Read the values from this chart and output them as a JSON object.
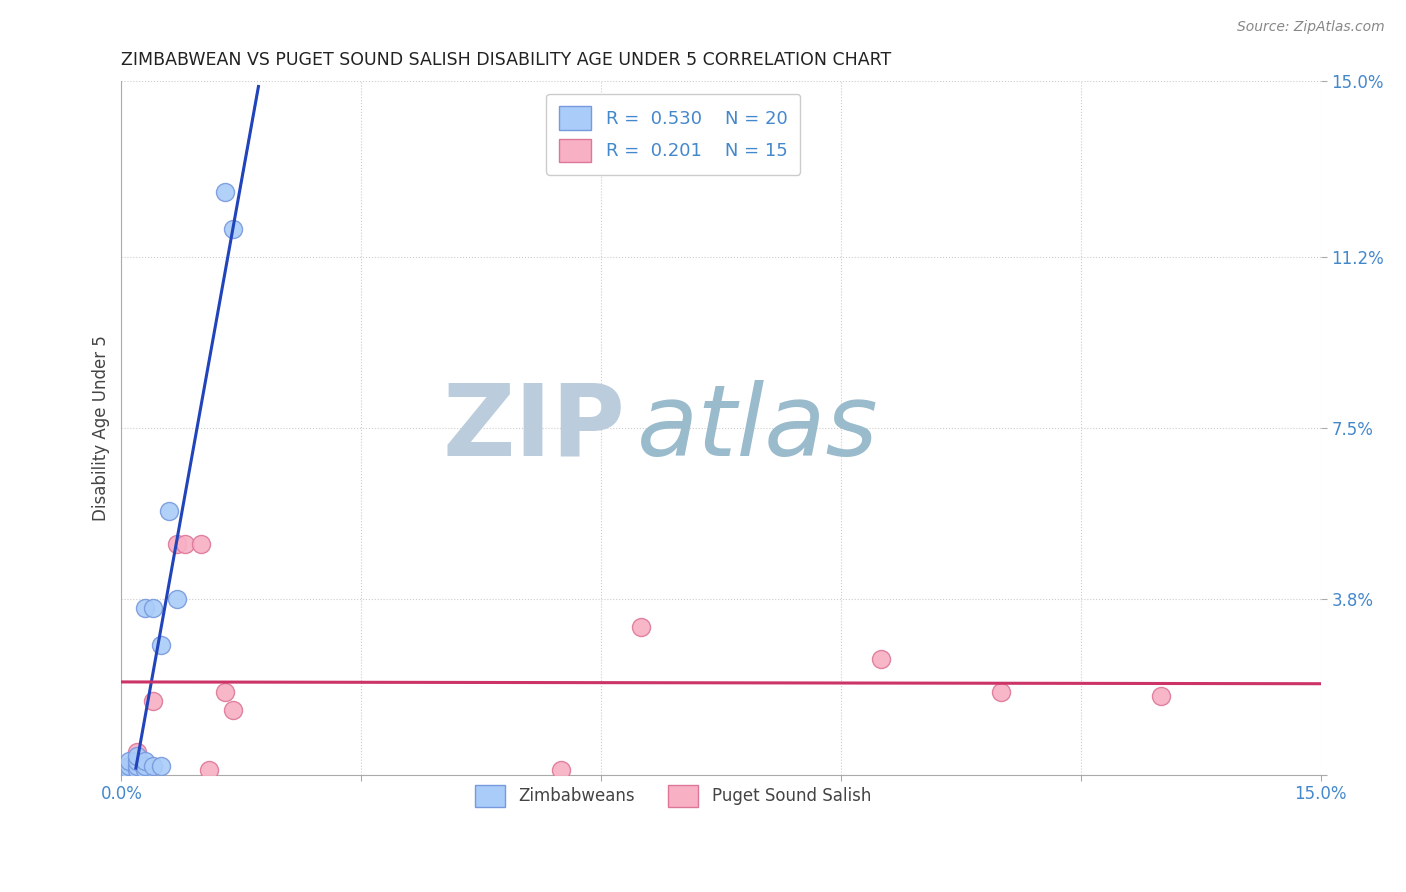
{
  "title": "ZIMBABWEAN VS PUGET SOUND SALISH DISABILITY AGE UNDER 5 CORRELATION CHART",
  "source": "Source: ZipAtlas.com",
  "ylabel": "Disability Age Under 5",
  "xlim": [
    0.0,
    0.15
  ],
  "ylim": [
    0.0,
    0.15
  ],
  "xtick_vals": [
    0.0,
    0.03,
    0.06,
    0.09,
    0.12,
    0.15
  ],
  "ytick_vals": [
    0.0,
    0.038,
    0.075,
    0.112,
    0.15
  ],
  "legend_blue_R": "0.530",
  "legend_blue_N": "20",
  "legend_pink_R": "0.201",
  "legend_pink_N": "15",
  "legend_bottom": [
    "Zimbabweans",
    "Puget Sound Salish"
  ],
  "watermark_zip": "ZIP",
  "watermark_atlas": "atlas",
  "blue_scatter_x": [
    0.0005,
    0.001,
    0.001,
    0.001,
    0.002,
    0.002,
    0.002,
    0.002,
    0.003,
    0.003,
    0.003,
    0.003,
    0.004,
    0.004,
    0.005,
    0.005,
    0.006,
    0.007,
    0.013,
    0.014
  ],
  "blue_scatter_y": [
    0.001,
    0.001,
    0.002,
    0.003,
    0.001,
    0.002,
    0.003,
    0.004,
    0.001,
    0.002,
    0.003,
    0.036,
    0.002,
    0.036,
    0.002,
    0.028,
    0.057,
    0.038,
    0.126,
    0.118
  ],
  "pink_scatter_x": [
    0.001,
    0.002,
    0.004,
    0.007,
    0.008,
    0.01,
    0.011,
    0.013,
    0.014,
    0.055,
    0.065,
    0.095,
    0.11,
    0.13,
    0.002
  ],
  "pink_scatter_y": [
    0.002,
    0.001,
    0.016,
    0.05,
    0.05,
    0.05,
    0.001,
    0.018,
    0.014,
    0.001,
    0.032,
    0.025,
    0.018,
    0.017,
    0.005
  ],
  "blue_color": "#aaccf8",
  "blue_edge": "#7799dd",
  "pink_color": "#f8b0c4",
  "pink_edge": "#dd7799",
  "blue_line_color": "#2244bb",
  "pink_line_color": "#cc3366",
  "grid_color": "#cccccc",
  "grid_style_main": "dotted",
  "title_color": "#222222",
  "axis_label_color": "#444444",
  "tick_color": "#4488cc",
  "watermark_zip_color": "#bbccdd",
  "watermark_atlas_color": "#99bbcc",
  "marker_size": 13
}
